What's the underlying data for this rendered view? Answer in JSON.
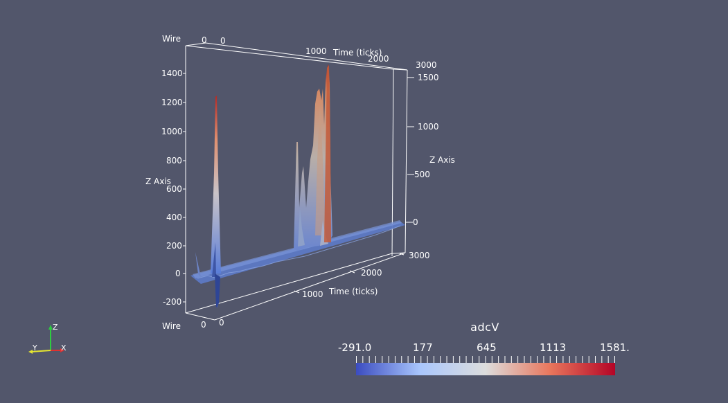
{
  "viewer": {
    "background_color": "#52566b"
  },
  "axes": {
    "wire_label_top": "Wire",
    "wire_label_bottom": "Wire",
    "time_label_top": "Time (ticks)",
    "time_label_bottom": "Time (ticks)",
    "z_label_left": "Z Axis",
    "z_label_right": "Z Axis",
    "left_ticks": [
      "1400",
      "1200",
      "1000",
      "800",
      "600",
      "400",
      "200",
      "0",
      "-200"
    ],
    "right_ticks": [
      "1500",
      "1000",
      "500",
      "0"
    ],
    "top_time_ticks": [
      "0",
      "1000",
      "2000",
      "3000"
    ],
    "top_wire_tick": "0",
    "bottom_time_ticks": [
      "0",
      "1000",
      "2000",
      "3000"
    ],
    "bottom_wire_tick": "0"
  },
  "colorbar": {
    "title": "adcV",
    "labels": [
      "-291.0",
      "177",
      "645",
      "1113",
      "1581."
    ],
    "colors": [
      "#3b4cc0",
      "#aac7fd",
      "#dddddd",
      "#e8765c",
      "#b40426"
    ]
  },
  "orientation_triad": {
    "z": "Z",
    "y": "Y",
    "x": "X"
  }
}
